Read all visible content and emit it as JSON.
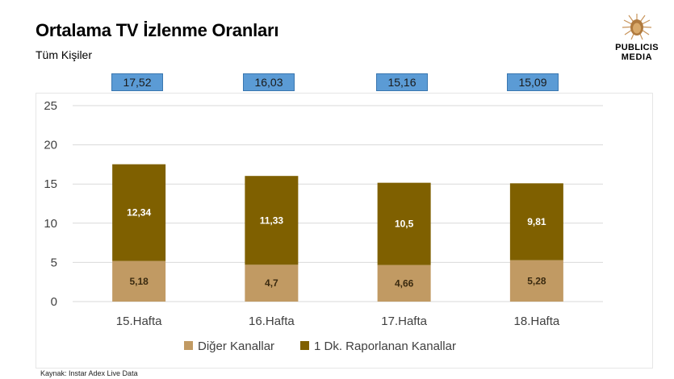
{
  "header": {
    "title": "Ortalama TV İzlenme Oranları",
    "subtitle": "Tüm Kişiler"
  },
  "logo": {
    "line1": "PUBLICIS",
    "line2": "MEDIA",
    "icon": "lion-head-icon"
  },
  "totals": [
    "17,52",
    "16,03",
    "15,16",
    "15,09"
  ],
  "source": "Kaynak: Instar  Adex Live Data",
  "colors": {
    "other_channels": "#c19a63",
    "reported_channels": "#7f6000",
    "total_box": "#5b9bd5",
    "gridline": "#d9d9d9"
  },
  "chart_data": {
    "type": "bar",
    "stacked": true,
    "categories": [
      "15.Hafta",
      "16.Hafta",
      "17.Hafta",
      "18.Hafta"
    ],
    "series": [
      {
        "name": "Diğer Kanallar",
        "values": [
          5.18,
          4.7,
          4.66,
          5.28
        ],
        "labels": [
          "5,18",
          "4,7",
          "4,66",
          "5,28"
        ],
        "color": "#c19a63"
      },
      {
        "name": "1 Dk. Raporlanan Kanallar",
        "values": [
          12.34,
          11.33,
          10.5,
          9.81
        ],
        "labels": [
          "12,34",
          "11,33",
          "10,5",
          "9,81"
        ],
        "color": "#7f6000"
      }
    ],
    "ylim": [
      0,
      25
    ],
    "yticks": [
      0,
      5,
      10,
      15,
      20,
      25
    ],
    "grid": true,
    "legend": "bottom"
  }
}
